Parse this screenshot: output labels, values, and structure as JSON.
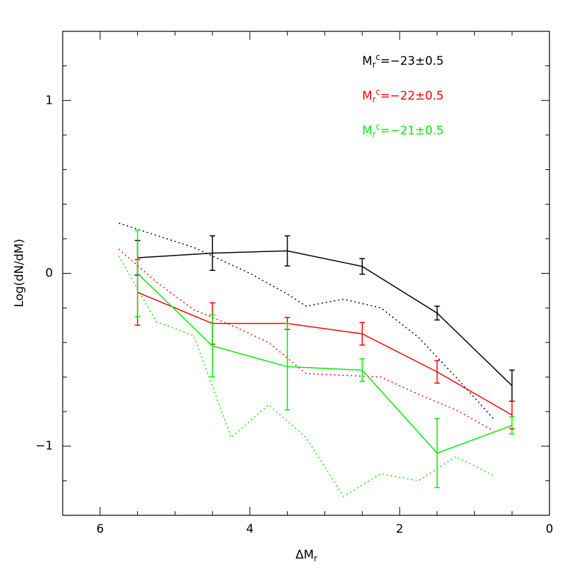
{
  "chart_data": {
    "type": "line",
    "xlabel": {
      "base": "ΔM",
      "sub": "r"
    },
    "ylabel": "Log(dN/dM)",
    "xlim": [
      6.5,
      0
    ],
    "ylim": [
      -1.4,
      1.4
    ],
    "xticks": [
      6,
      4,
      2,
      0
    ],
    "xminorticks": [
      0.5,
      1,
      1.5,
      2.5,
      3,
      3.5,
      4.5,
      5,
      5.5
    ],
    "yticks": [
      {
        "value": -1,
        "label": "−1"
      },
      0,
      1
    ],
    "yminorticks": [
      -1.2,
      -0.8,
      -0.6,
      -0.4,
      -0.2,
      0.2,
      0.4,
      0.6,
      0.8,
      1.2
    ],
    "legend_symbol": {
      "base": "M",
      "sub": "r",
      "sup": "c"
    },
    "series": [
      {
        "name": "=−23±0.5",
        "color": "#000000",
        "x": [
          5.5,
          4.5,
          3.5,
          2.5,
          1.5,
          0.5
        ],
        "values": [
          0.09,
          0.117,
          0.13,
          0.04,
          -0.23,
          -0.65
        ],
        "errors": [
          0.1,
          0.1,
          0.087,
          0.045,
          0.04,
          0.09
        ]
      },
      {
        "name": "=−22±0.5",
        "color": "#ff0000",
        "x": [
          5.5,
          4.5,
          3.5,
          2.5,
          1.5,
          0.5
        ],
        "values": [
          -0.11,
          -0.29,
          -0.29,
          -0.35,
          -0.57,
          -0.82
        ],
        "errors": [
          0.19,
          0.12,
          0.035,
          0.065,
          0.065,
          0.08
        ]
      },
      {
        "name": "=−21±0.5",
        "color": "#00ee00",
        "x": [
          5.5,
          4.5,
          3.5,
          2.5,
          1.5,
          0.5
        ],
        "values": [
          0.0,
          -0.42,
          -0.54,
          -0.56,
          -1.04,
          -0.88
        ],
        "errors": [
          0.25,
          0.18,
          0.25,
          0.065,
          0.2,
          0.05
        ]
      }
    ],
    "dotted_series": [
      {
        "color": "#000000",
        "x": [
          5.75,
          4.75,
          4.5,
          4,
          3.5,
          3.25,
          2.75,
          2.25,
          1.75,
          1.25,
          0.75
        ],
        "values": [
          0.29,
          0.15,
          0.1,
          0.0,
          -0.12,
          -0.19,
          -0.15,
          -0.2,
          -0.37,
          -0.6,
          -0.84
        ]
      },
      {
        "color": "#ff0000",
        "x": [
          5.75,
          5.25,
          4.75,
          4.25,
          3.75,
          3.25,
          2.25,
          1.75,
          1.25,
          0.75
        ],
        "values": [
          0.14,
          -0.05,
          -0.21,
          -0.3,
          -0.4,
          -0.58,
          -0.6,
          -0.7,
          -0.79,
          -0.91
        ]
      },
      {
        "color": "#00ee00",
        "x": [
          5.75,
          5.25,
          4.75,
          4.25,
          3.75,
          3.25,
          2.75,
          2.25,
          1.75,
          1.25,
          0.75
        ],
        "values": [
          0.1,
          -0.28,
          -0.36,
          -0.95,
          -0.76,
          -0.95,
          -1.29,
          -1.16,
          -1.2,
          -1.06,
          -1.17
        ]
      }
    ]
  }
}
